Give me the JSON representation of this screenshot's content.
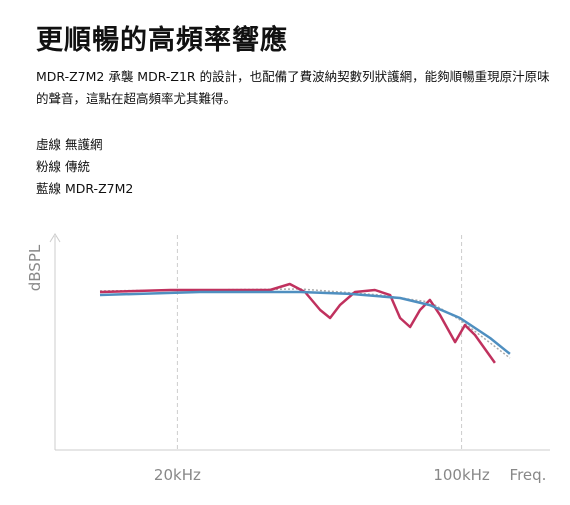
{
  "header": {
    "title": "更順暢的高頻率響應",
    "description": "MDR-Z7M2 承襲 MDR-Z1R 的設計，也配備了費波納契數列狀護網，能夠順暢重現原汁原味的聲音，這點在超高頻率尤其難得。"
  },
  "chart_data": {
    "type": "line",
    "xlabel": "Freq.",
    "ylabel": "dBSPL",
    "xscale": "log",
    "xlim": [
      10,
      165
    ],
    "ylim": [
      0,
      100
    ],
    "xticks": [
      {
        "value": 20,
        "label": "20kHz"
      },
      {
        "value": 100,
        "label": "100kHz"
      }
    ],
    "grid": true,
    "series": [
      {
        "name": "虛線 無護網",
        "color": "#aaaaaa",
        "dashed": true,
        "x": [
          12.9,
          40.1,
          63.0,
          83.6,
          99.1,
          131.5
        ],
        "values": [
          74.0,
          74.9,
          72.1,
          68.8,
          60.5,
          42.8
        ]
      },
      {
        "name": "粉線 傳統",
        "color": "#c0315e",
        "dashed": false,
        "x": [
          12.9,
          19.2,
          33.8,
          37.8,
          41.2,
          44.9,
          47.5,
          50.2,
          54.7,
          61.2,
          66.7,
          70.6,
          74.7,
          79.0,
          83.6,
          88.5,
          96.4,
          101.9,
          107.9,
          120.8
        ],
        "values": [
          73.5,
          74.4,
          74.4,
          77.2,
          73.5,
          65.1,
          61.4,
          67.4,
          73.5,
          74.4,
          72.1,
          61.4,
          57.2,
          65.1,
          69.8,
          62.8,
          50.2,
          58.1,
          53.5,
          40.5
        ]
      },
      {
        "name": "藍線 MDR-Z7M2",
        "color": "#4f8fc0",
        "dashed": false,
        "x": [
          12.9,
          22.7,
          40.1,
          53.2,
          70.6,
          83.6,
          99.1,
          117.5,
          131.5
        ],
        "values": [
          72.1,
          73.5,
          73.5,
          72.6,
          70.7,
          67.4,
          61.4,
          52.1,
          44.7
        ]
      }
    ]
  }
}
